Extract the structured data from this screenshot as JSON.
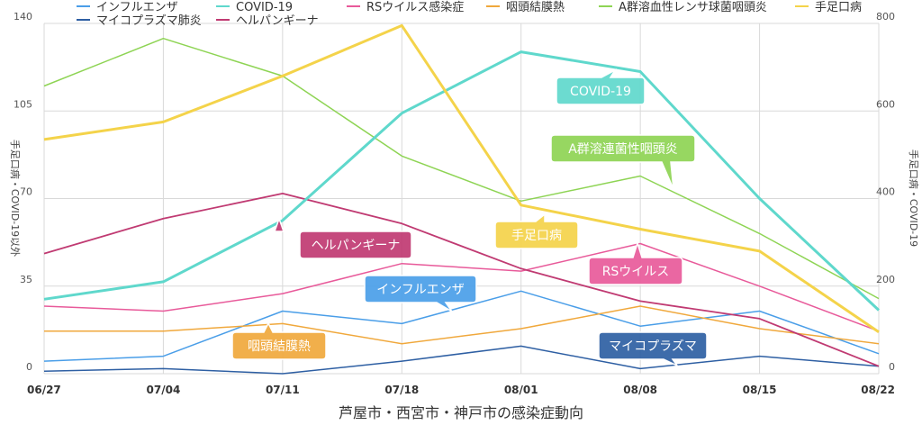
{
  "chart_data": {
    "type": "line",
    "xlabel": "芦屋市・西宮市・神戸市の感染症動向",
    "ylabel_left": "手足口病・COVID-19以外",
    "ylabel_right": "手足口病・COVID-19",
    "ylim_left": [
      0,
      140
    ],
    "ylim_right": [
      0,
      800
    ],
    "yticks_left": [
      0,
      35,
      70,
      105,
      140
    ],
    "yticks_right": [
      0,
      200,
      400,
      600,
      800
    ],
    "categories": [
      "06/27",
      "07/04",
      "07/11",
      "07/18",
      "08/01",
      "08/08",
      "08/15",
      "08/22"
    ],
    "grid": true,
    "legend_position": "top",
    "series": [
      {
        "name": "インフルエンザ",
        "axis": "left",
        "color": "#4a9ee8",
        "width": 1.5,
        "values": [
          5,
          7,
          25,
          20,
          33,
          19,
          25,
          8
        ]
      },
      {
        "name": "マイコプラズマ肺炎",
        "axis": "left",
        "color": "#2e5fa3",
        "width": 1.5,
        "values": [
          1,
          2,
          0,
          5,
          11,
          2,
          7,
          3
        ]
      },
      {
        "name": "COVID-19",
        "axis": "right",
        "color": "#5fd8cc",
        "width": 3,
        "values": [
          170,
          210,
          350,
          595,
          735,
          690,
          400,
          145
        ]
      },
      {
        "name": "ヘルパンギーナ",
        "axis": "left",
        "color": "#c03a72",
        "width": 1.8,
        "values": [
          48,
          62,
          72,
          60,
          42,
          29,
          22,
          3
        ]
      },
      {
        "name": "RSウイルス感染症",
        "axis": "left",
        "color": "#e85a9a",
        "width": 1.5,
        "values": [
          27,
          25,
          32,
          44,
          41,
          52,
          35,
          17
        ]
      },
      {
        "name": "咽頭結膜熱",
        "axis": "left",
        "color": "#f0a83c",
        "width": 1.5,
        "values": [
          17,
          17,
          20,
          12,
          18,
          27,
          18,
          12
        ]
      },
      {
        "name": "A群溶血性レンサ球菌咽頭炎",
        "axis": "left",
        "color": "#8ed454",
        "width": 1.5,
        "values": [
          115,
          134,
          119,
          87,
          69,
          79,
          56,
          30
        ]
      },
      {
        "name": "手足口病",
        "axis": "right",
        "color": "#f4d34a",
        "width": 3,
        "values": [
          535,
          575,
          680,
          795,
          385,
          330,
          280,
          95
        ]
      }
    ],
    "annotations": [
      {
        "text": "COVID-19",
        "color": "#5fd8cc"
      },
      {
        "text": "A群溶連菌性咽頭炎",
        "color": "#8ed454"
      },
      {
        "text": "ヘルパンギーナ",
        "color": "#c03a72"
      },
      {
        "text": "手足口病",
        "color": "#f4d34a"
      },
      {
        "text": "RSウイルス",
        "color": "#e85a9a"
      },
      {
        "text": "インフルエンザ",
        "color": "#4a9ee8"
      },
      {
        "text": "咽頭結膜熱",
        "color": "#f0a83c"
      },
      {
        "text": "マイコプラズマ",
        "color": "#2e5fa3"
      }
    ]
  }
}
